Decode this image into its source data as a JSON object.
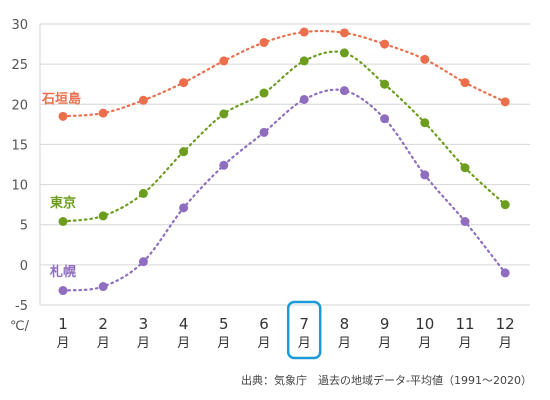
{
  "chart_data": {
    "type": "line",
    "categories": [
      "1",
      "2",
      "3",
      "4",
      "5",
      "6",
      "7",
      "8",
      "9",
      "10",
      "11",
      "12"
    ],
    "month_unit": "月",
    "unit_label": "℃/",
    "ylim": [
      -5,
      30
    ],
    "yticks": [
      -5,
      0,
      5,
      10,
      15,
      20,
      25,
      30
    ],
    "grid": true,
    "highlight_category": "7",
    "highlight_color": "#1a9bd7",
    "series": [
      {
        "name": "石垣島",
        "color": "#ec6f4d",
        "values": [
          18.5,
          18.9,
          20.5,
          22.7,
          25.4,
          27.7,
          29.0,
          28.9,
          27.5,
          25.6,
          22.7,
          20.3
        ]
      },
      {
        "name": "東京",
        "color": "#6c9d1e",
        "values": [
          5.4,
          6.1,
          8.9,
          14.1,
          18.8,
          21.4,
          25.4,
          26.4,
          22.5,
          17.7,
          12.1,
          7.5
        ]
      },
      {
        "name": "札幌",
        "color": "#8f6ec0",
        "values": [
          -3.2,
          -2.7,
          0.4,
          7.1,
          12.4,
          16.5,
          20.6,
          21.7,
          18.2,
          11.2,
          5.4,
          -1.0
        ]
      }
    ]
  },
  "source": "出典：気象庁　過去の地域データ-平均値（1991〜2020）"
}
